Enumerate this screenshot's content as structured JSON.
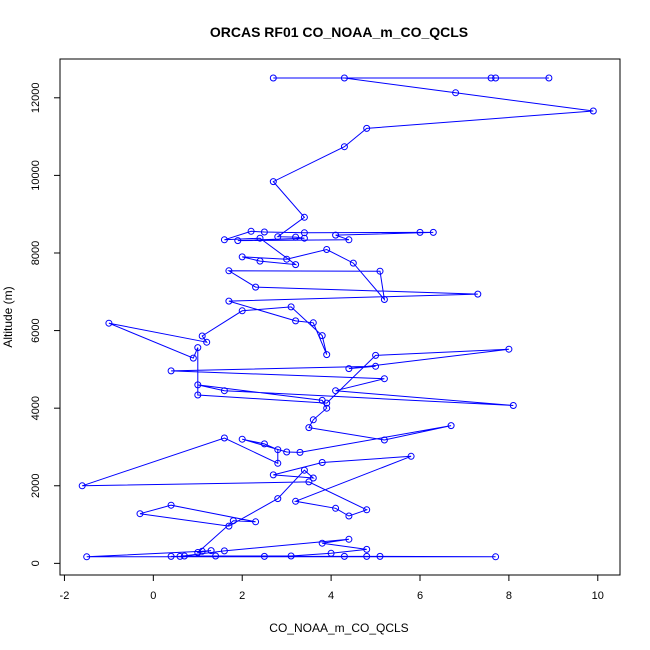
{
  "chart_data": {
    "type": "line",
    "title": "ORCAS RF01 CO_NOAA_m_CO_QCLS",
    "xlabel": "CO_NOAA_m_CO_QCLS",
    "ylabel": "Altitude (m)",
    "xlim": [
      -2.1,
      10.5
    ],
    "ylim": [
      -300,
      13000
    ],
    "xticks": [
      -2,
      0,
      2,
      4,
      6,
      8,
      10
    ],
    "yticks": [
      0,
      2000,
      4000,
      6000,
      8000,
      10000,
      12000
    ],
    "xtick_labels": [
      "-2",
      "0",
      "2",
      "4",
      "6",
      "8",
      "10"
    ],
    "ytick_labels": [
      "0",
      "2000",
      "4000",
      "6000",
      "8000",
      "10000",
      "12000"
    ],
    "grid": false,
    "legend": "none",
    "series": [
      {
        "color": "#0000ff",
        "marker": "open-circle",
        "points": [
          [
            0.4,
            180
          ],
          [
            0.6,
            180
          ],
          [
            1.6,
            320
          ],
          [
            4.4,
            620
          ],
          [
            3.8,
            520
          ],
          [
            4.8,
            360
          ],
          [
            4.0,
            260
          ],
          [
            3.1,
            190
          ],
          [
            1.4,
            190
          ],
          [
            0.7,
            190
          ],
          [
            2.5,
            180
          ],
          [
            4.3,
            180
          ],
          [
            4.8,
            180
          ],
          [
            5.1,
            180
          ],
          [
            7.7,
            170
          ],
          [
            -1.5,
            170
          ],
          [
            1.1,
            310
          ],
          [
            1.3,
            330
          ],
          [
            1.0,
            280
          ],
          [
            1.8,
            1100
          ],
          [
            2.3,
            1070
          ],
          [
            0.4,
            1500
          ],
          [
            -0.3,
            1280
          ],
          [
            1.7,
            960
          ],
          [
            2.8,
            1670
          ],
          [
            3.4,
            2400
          ],
          [
            3.6,
            2200
          ],
          [
            2.7,
            2280
          ],
          [
            3.8,
            2600
          ],
          [
            5.8,
            2760
          ],
          [
            3.2,
            1600
          ],
          [
            4.1,
            1420
          ],
          [
            4.4,
            1220
          ],
          [
            4.8,
            1380
          ],
          [
            3.5,
            2100
          ],
          [
            -1.6,
            2000
          ],
          [
            1.6,
            3230
          ],
          [
            2.8,
            2580
          ],
          [
            2.8,
            2930
          ],
          [
            2.5,
            3080
          ],
          [
            2.0,
            3200
          ],
          [
            3.0,
            2870
          ],
          [
            3.3,
            2860
          ],
          [
            6.7,
            3550
          ],
          [
            5.2,
            3180
          ],
          [
            3.5,
            3500
          ],
          [
            3.6,
            3700
          ],
          [
            3.9,
            4000
          ],
          [
            3.8,
            4200
          ],
          [
            1.0,
            4600
          ],
          [
            1.6,
            4450
          ],
          [
            8.1,
            4070
          ],
          [
            4.1,
            4450
          ],
          [
            5.2,
            4760
          ],
          [
            0.4,
            4960
          ],
          [
            5.0,
            5080
          ],
          [
            4.4,
            5020
          ],
          [
            8.0,
            5520
          ],
          [
            5.0,
            5360
          ],
          [
            3.9,
            4130
          ],
          [
            1.0,
            4340
          ],
          [
            1.0,
            5560
          ],
          [
            0.9,
            5290
          ],
          [
            -1.0,
            6190
          ],
          [
            1.2,
            5700
          ],
          [
            1.1,
            5860
          ],
          [
            2.0,
            6510
          ],
          [
            3.1,
            6610
          ],
          [
            3.8,
            5870
          ],
          [
            3.9,
            5380
          ],
          [
            3.6,
            6200
          ],
          [
            3.2,
            6250
          ],
          [
            1.7,
            6760
          ],
          [
            7.3,
            6940
          ],
          [
            2.3,
            7120
          ],
          [
            1.7,
            7540
          ],
          [
            5.1,
            7530
          ],
          [
            5.2,
            6800
          ],
          [
            4.5,
            7740
          ],
          [
            3.9,
            8090
          ],
          [
            3.0,
            7840
          ],
          [
            2.0,
            7900
          ],
          [
            2.4,
            7790
          ],
          [
            3.2,
            7700
          ],
          [
            2.4,
            8380
          ],
          [
            1.6,
            8340
          ],
          [
            2.2,
            8560
          ],
          [
            2.5,
            8540
          ],
          [
            3.4,
            8520
          ],
          [
            6.0,
            8530
          ],
          [
            6.3,
            8530
          ],
          [
            4.1,
            8460
          ],
          [
            4.4,
            8340
          ],
          [
            1.9,
            8320
          ],
          [
            3.4,
            8380
          ],
          [
            3.2,
            8410
          ],
          [
            2.8,
            8420
          ],
          [
            3.4,
            8920
          ],
          [
            2.7,
            9840
          ],
          [
            4.3,
            10740
          ],
          [
            4.8,
            11210
          ],
          [
            9.9,
            11660
          ],
          [
            6.8,
            12130
          ],
          [
            4.3,
            12510
          ],
          [
            2.7,
            12510
          ],
          [
            7.6,
            12510
          ],
          [
            7.7,
            12510
          ],
          [
            8.9,
            12510
          ]
        ]
      }
    ]
  }
}
